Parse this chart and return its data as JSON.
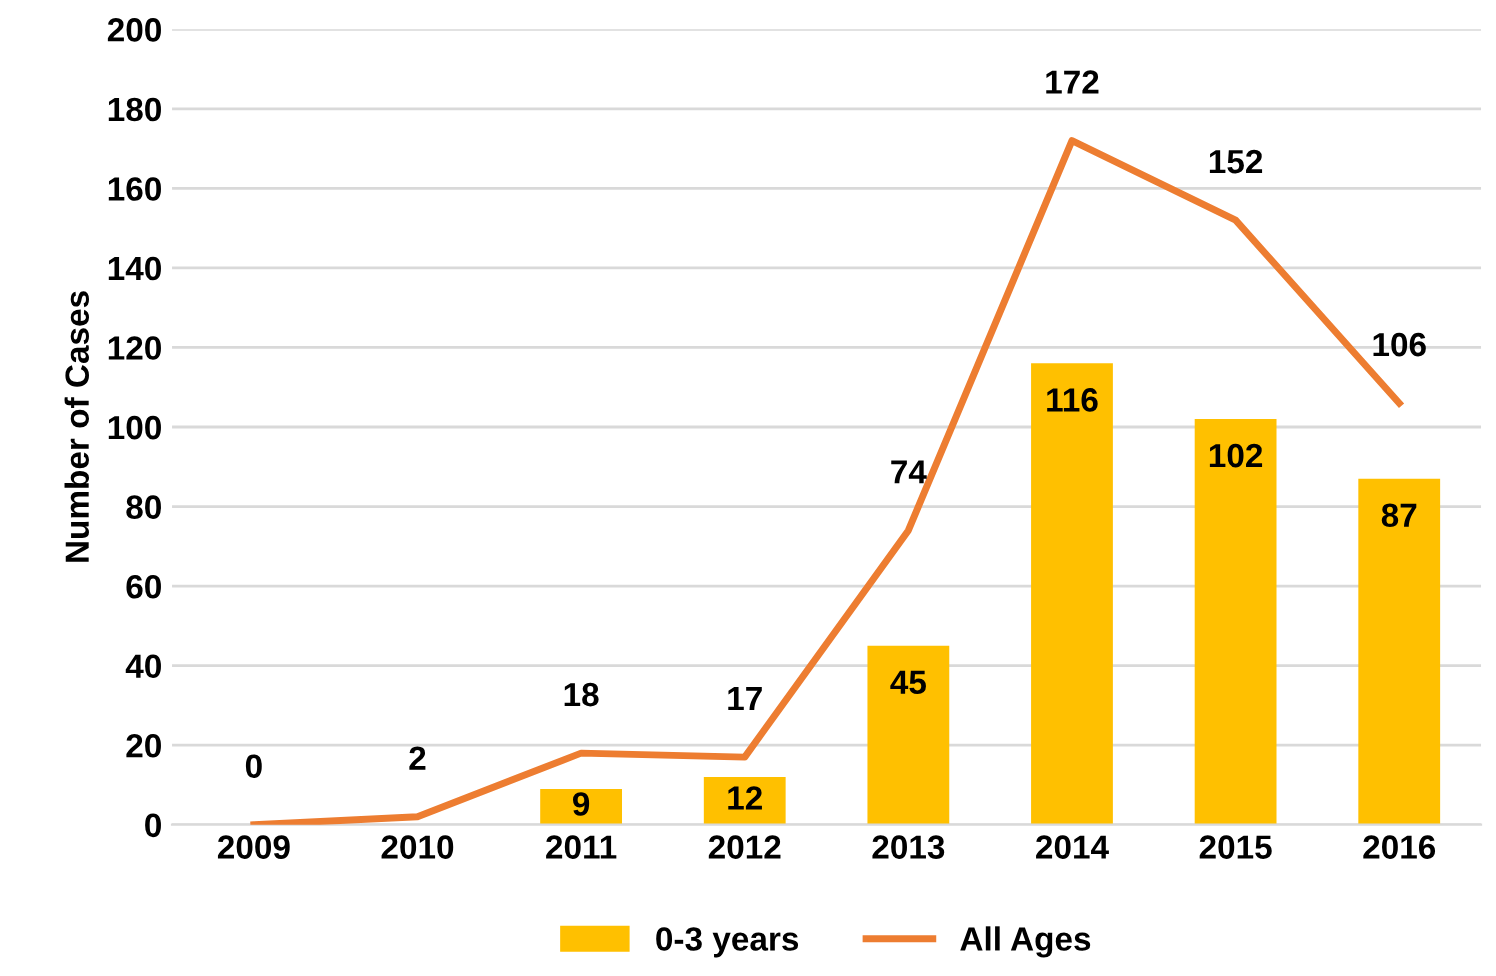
{
  "chart_data": {
    "type": "bar",
    "ylabel": "Number of Cases",
    "categories": [
      "2009",
      "2010",
      "2011",
      "2012",
      "2013",
      "2014",
      "2015",
      "2016"
    ],
    "ylim": [
      0,
      200
    ],
    "yticks": [
      0,
      20,
      40,
      60,
      80,
      100,
      120,
      140,
      160,
      180,
      200
    ],
    "grid": "y",
    "legend": "bottom",
    "series": [
      {
        "name": "0-3 years",
        "color": "#ffc000",
        "values": [
          null,
          null,
          9,
          12,
          45,
          116,
          102,
          87
        ],
        "value_labels": [
          null,
          null,
          "9",
          "12",
          "45",
          "116",
          "102",
          "87"
        ]
      },
      {
        "name": "All Ages",
        "type": "line",
        "color": "#ed7d31",
        "values": [
          0,
          2,
          18,
          17,
          74,
          172,
          152,
          106
        ],
        "value_labels": [
          "0",
          "2",
          "18",
          "17",
          "74",
          "172",
          "152",
          "106"
        ]
      }
    ]
  }
}
